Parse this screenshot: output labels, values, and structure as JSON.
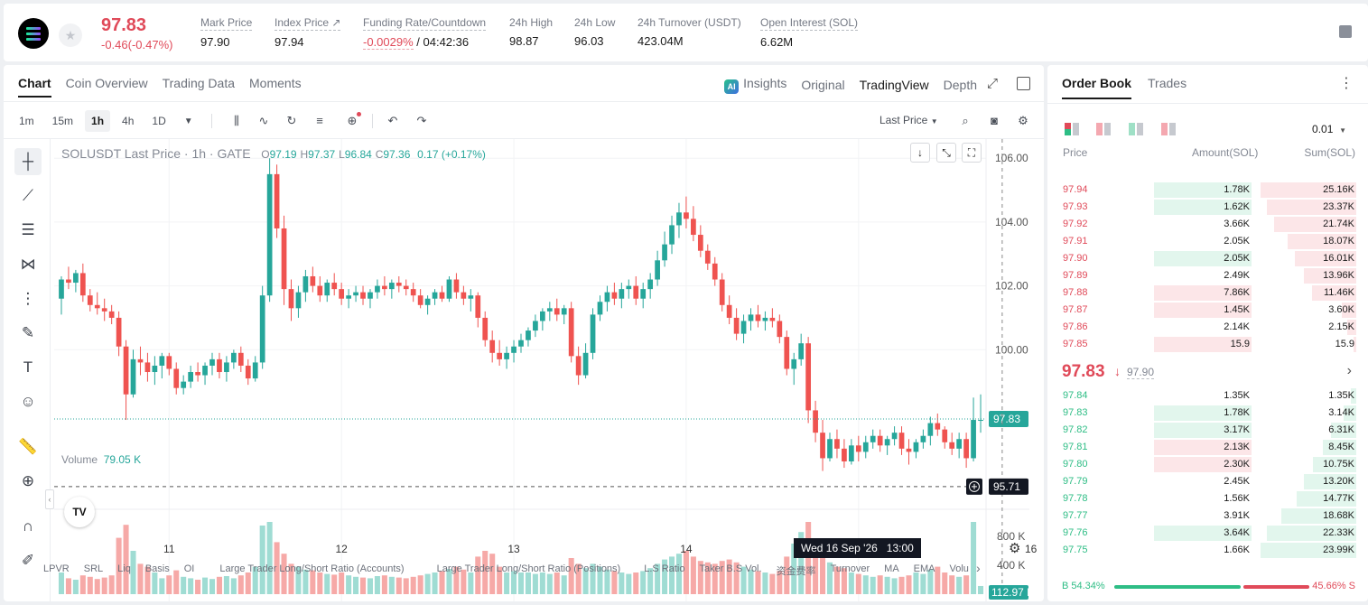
{
  "header": {
    "last_price": "97.83",
    "change": "-0.46(-0.47%)",
    "stats": [
      {
        "label": "Mark Price",
        "value": "97.90"
      },
      {
        "label": "Index Price ↗",
        "value": "97.94"
      },
      {
        "label": "Funding Rate/Countdown",
        "value": "-0.0029%",
        "value2": "/ 04:42:36"
      },
      {
        "label": "24h High",
        "value": "98.87"
      },
      {
        "label": "24h Low",
        "value": "96.03"
      },
      {
        "label": "24h Turnover (USDT)",
        "value": "423.04M"
      },
      {
        "label": "Open Interest (SOL)",
        "value": "6.62M"
      }
    ]
  },
  "chart_panel": {
    "tabs": [
      "Chart",
      "Coin Overview",
      "Trading Data",
      "Moments"
    ],
    "views": {
      "insights": "Insights",
      "original": "Original",
      "tradingview": "TradingView",
      "depth": "Depth"
    },
    "ai_badge": "AI",
    "timeframes": [
      "1m",
      "15m",
      "1h",
      "4h",
      "1D"
    ],
    "price_type": "Last Price",
    "legend": {
      "symbol": "SOLUSDT Last Price · 1h · GATE",
      "o": "97.19",
      "h": "97.37",
      "l": "96.84",
      "c": "97.36",
      "chg": "0.17 (+0.17%)"
    },
    "volume_label": "Volume",
    "volume_value": "79.05 K",
    "last_price_tag": "97.83",
    "cursor_price_tag": "95.71",
    "cursor_time": "Wed 16 Sep '26   13:00",
    "bottom_indicators": [
      "LPVR",
      "SRL",
      "Liq",
      "Basis",
      "OI",
      "Large Trader Long/Short Ratio (Accounts)",
      "Large Trader Long/Short Ratio (Positions)",
      "L.S Ratio",
      "Taker B.S Vol.",
      "资金费率",
      "Turnover",
      "MA",
      "EMA",
      "Volu"
    ]
  },
  "chart_data": {
    "type": "candlestick",
    "x_ticks": [
      "11",
      "12",
      "13",
      "14",
      "15",
      "16"
    ],
    "y_ticks": [
      106.0,
      104.0,
      102.0,
      100.0
    ],
    "ylim": [
      95.0,
      106.6
    ],
    "volume_ticks": [
      "800 K",
      "400 K"
    ],
    "volume_max": 1000,
    "latest_volume_tag": "112.97 K",
    "candles": [
      [
        101.6,
        102.3,
        101.1,
        102.2,
        300
      ],
      [
        102.2,
        102.6,
        101.9,
        102.1,
        220
      ],
      [
        102.1,
        102.5,
        101.8,
        102.4,
        200
      ],
      [
        102.4,
        102.7,
        101.5,
        101.7,
        260
      ],
      [
        101.7,
        101.9,
        101.2,
        101.4,
        240
      ],
      [
        101.4,
        101.8,
        101.1,
        101.3,
        210
      ],
      [
        101.3,
        101.6,
        100.9,
        101.2,
        230
      ],
      [
        101.2,
        101.4,
        100.8,
        101.0,
        260
      ],
      [
        101.0,
        101.2,
        99.8,
        100.1,
        780
      ],
      [
        100.1,
        100.3,
        97.8,
        98.6,
        960
      ],
      [
        98.6,
        100.0,
        98.5,
        99.7,
        600
      ],
      [
        99.7,
        100.1,
        99.2,
        99.6,
        420
      ],
      [
        99.6,
        99.9,
        99.0,
        99.3,
        380
      ],
      [
        99.3,
        99.8,
        98.9,
        99.5,
        300
      ],
      [
        99.5,
        99.9,
        99.1,
        99.8,
        220
      ],
      [
        99.8,
        99.9,
        99.2,
        99.4,
        260
      ],
      [
        99.4,
        99.6,
        98.6,
        98.8,
        330
      ],
      [
        98.8,
        99.2,
        98.6,
        99.0,
        240
      ],
      [
        99.0,
        99.5,
        98.8,
        99.3,
        220
      ],
      [
        99.3,
        99.6,
        99.0,
        99.2,
        200
      ],
      [
        99.2,
        99.6,
        98.9,
        99.5,
        230
      ],
      [
        99.5,
        99.9,
        99.2,
        99.7,
        210
      ],
      [
        99.7,
        99.9,
        99.1,
        99.3,
        240
      ],
      [
        99.3,
        99.8,
        99.0,
        99.6,
        250
      ],
      [
        99.6,
        100.0,
        99.4,
        99.9,
        220
      ],
      [
        99.9,
        100.1,
        99.3,
        99.5,
        260
      ],
      [
        99.5,
        99.7,
        98.9,
        99.1,
        300
      ],
      [
        99.1,
        99.8,
        99.0,
        99.6,
        380
      ],
      [
        99.6,
        102.0,
        99.4,
        101.7,
        950
      ],
      [
        101.7,
        106.0,
        101.5,
        105.5,
        1000
      ],
      [
        105.5,
        105.8,
        103.5,
        103.8,
        720
      ],
      [
        103.8,
        104.2,
        101.4,
        101.9,
        560
      ],
      [
        101.9,
        102.2,
        100.9,
        101.3,
        420
      ],
      [
        101.3,
        102.0,
        101.0,
        101.8,
        380
      ],
      [
        101.8,
        102.5,
        101.5,
        102.3,
        340
      ],
      [
        102.3,
        102.6,
        101.8,
        102.0,
        330
      ],
      [
        102.0,
        102.3,
        101.5,
        101.7,
        300
      ],
      [
        101.7,
        102.2,
        101.5,
        102.1,
        280
      ],
      [
        102.1,
        102.4,
        101.7,
        101.9,
        270
      ],
      [
        101.9,
        102.1,
        101.4,
        101.6,
        300
      ],
      [
        101.6,
        101.9,
        101.3,
        101.7,
        260
      ],
      [
        101.7,
        102.0,
        101.5,
        101.8,
        240
      ],
      [
        101.8,
        102.0,
        101.4,
        101.6,
        230
      ],
      [
        101.6,
        101.9,
        101.3,
        101.8,
        220
      ],
      [
        101.8,
        102.2,
        101.6,
        102.0,
        250
      ],
      [
        102.0,
        102.3,
        101.7,
        101.9,
        260
      ],
      [
        101.9,
        102.2,
        101.6,
        102.1,
        240
      ],
      [
        102.1,
        102.3,
        101.8,
        102.0,
        230
      ],
      [
        102.0,
        102.2,
        101.7,
        101.9,
        220
      ],
      [
        101.9,
        102.1,
        101.5,
        101.7,
        240
      ],
      [
        101.7,
        101.9,
        101.3,
        101.4,
        260
      ],
      [
        101.4,
        101.7,
        101.1,
        101.6,
        280
      ],
      [
        101.6,
        101.9,
        101.4,
        101.8,
        300
      ],
      [
        101.8,
        102.0,
        101.5,
        101.6,
        320
      ],
      [
        101.6,
        102.3,
        101.5,
        102.2,
        350
      ],
      [
        102.2,
        102.4,
        101.6,
        101.8,
        380
      ],
      [
        101.8,
        102.0,
        101.4,
        101.6,
        340
      ],
      [
        101.6,
        101.9,
        101.2,
        101.7,
        300
      ],
      [
        101.7,
        101.8,
        100.7,
        101.0,
        520
      ],
      [
        101.0,
        101.2,
        100.1,
        100.3,
        600
      ],
      [
        100.3,
        100.6,
        99.6,
        99.9,
        560
      ],
      [
        99.9,
        100.3,
        99.5,
        99.7,
        380
      ],
      [
        99.7,
        100.1,
        99.4,
        99.9,
        300
      ],
      [
        99.9,
        100.3,
        99.6,
        100.1,
        320
      ],
      [
        100.1,
        100.5,
        99.9,
        100.3,
        300
      ],
      [
        100.3,
        100.7,
        100.1,
        100.6,
        300
      ],
      [
        100.6,
        101.1,
        100.4,
        100.9,
        280
      ],
      [
        100.9,
        101.3,
        100.6,
        101.2,
        300
      ],
      [
        101.2,
        101.5,
        100.9,
        101.3,
        280
      ],
      [
        101.3,
        101.6,
        100.9,
        101.1,
        300
      ],
      [
        101.1,
        101.4,
        100.8,
        101.3,
        260
      ],
      [
        101.3,
        101.5,
        99.6,
        99.8,
        500
      ],
      [
        99.8,
        100.1,
        98.9,
        99.2,
        420
      ],
      [
        99.2,
        100.2,
        99.1,
        99.9,
        360
      ],
      [
        99.9,
        101.3,
        99.7,
        101.1,
        420
      ],
      [
        101.1,
        101.7,
        100.9,
        101.5,
        380
      ],
      [
        101.5,
        102.0,
        101.2,
        101.8,
        340
      ],
      [
        101.8,
        102.1,
        101.4,
        101.6,
        320
      ],
      [
        101.6,
        102.1,
        101.3,
        101.9,
        300
      ],
      [
        101.9,
        102.2,
        101.6,
        102.0,
        280
      ],
      [
        102.0,
        102.3,
        101.4,
        101.6,
        300
      ],
      [
        101.6,
        102.1,
        101.3,
        101.9,
        320
      ],
      [
        101.9,
        102.4,
        101.6,
        102.2,
        360
      ],
      [
        102.2,
        103.1,
        102.0,
        102.8,
        420
      ],
      [
        102.8,
        103.7,
        102.6,
        103.3,
        480
      ],
      [
        103.3,
        104.2,
        103.0,
        103.9,
        520
      ],
      [
        103.9,
        104.6,
        103.5,
        104.3,
        560
      ],
      [
        104.3,
        104.8,
        103.8,
        104.1,
        600
      ],
      [
        104.1,
        104.5,
        103.4,
        103.6,
        520
      ],
      [
        103.6,
        103.9,
        102.9,
        103.1,
        460
      ],
      [
        103.1,
        103.3,
        102.5,
        102.7,
        440
      ],
      [
        102.7,
        102.9,
        102.0,
        102.2,
        420
      ],
      [
        102.2,
        102.4,
        101.2,
        101.4,
        460
      ],
      [
        101.4,
        101.7,
        100.8,
        101.0,
        480
      ],
      [
        101.0,
        101.3,
        100.3,
        100.5,
        440
      ],
      [
        100.5,
        101.1,
        100.2,
        100.9,
        380
      ],
      [
        100.9,
        101.3,
        100.6,
        101.1,
        340
      ],
      [
        101.1,
        101.4,
        100.7,
        100.9,
        320
      ],
      [
        100.9,
        101.2,
        100.6,
        101.0,
        300
      ],
      [
        101.0,
        101.3,
        100.7,
        100.9,
        280
      ],
      [
        100.9,
        101.1,
        100.2,
        100.4,
        320
      ],
      [
        100.4,
        100.6,
        99.2,
        99.4,
        520
      ],
      [
        99.4,
        99.9,
        98.9,
        99.7,
        700
      ],
      [
        99.7,
        100.5,
        99.5,
        100.2,
        860
      ],
      [
        100.2,
        100.4,
        97.7,
        98.1,
        1000
      ],
      [
        98.1,
        98.4,
        97.1,
        97.4,
        700
      ],
      [
        97.4,
        97.8,
        96.2,
        96.6,
        520
      ],
      [
        96.6,
        97.4,
        96.5,
        97.2,
        440
      ],
      [
        97.2,
        97.5,
        96.6,
        96.9,
        380
      ],
      [
        96.9,
        97.2,
        96.3,
        96.5,
        360
      ],
      [
        96.5,
        97.2,
        96.4,
        97.0,
        300
      ],
      [
        97.0,
        97.3,
        96.5,
        96.8,
        280
      ],
      [
        96.8,
        97.3,
        96.6,
        97.1,
        260
      ],
      [
        97.1,
        97.5,
        96.9,
        97.3,
        240
      ],
      [
        97.3,
        97.5,
        96.8,
        97.0,
        260
      ],
      [
        97.0,
        97.3,
        96.7,
        97.2,
        240
      ],
      [
        97.2,
        97.6,
        97.0,
        97.4,
        220
      ],
      [
        97.4,
        97.6,
        96.7,
        96.9,
        240
      ],
      [
        96.9,
        97.2,
        96.4,
        96.8,
        260
      ],
      [
        96.8,
        97.2,
        96.6,
        97.1,
        300
      ],
      [
        97.1,
        97.5,
        96.9,
        97.3,
        280
      ],
      [
        97.3,
        97.9,
        97.0,
        97.7,
        340
      ],
      [
        97.7,
        98.0,
        97.3,
        97.5,
        380
      ],
      [
        97.5,
        97.6,
        96.9,
        97.1,
        300
      ],
      [
        97.1,
        97.4,
        96.7,
        96.9,
        260
      ],
      [
        96.9,
        97.4,
        96.6,
        97.2,
        240
      ],
      [
        97.2,
        97.4,
        96.3,
        96.6,
        260
      ],
      [
        96.6,
        98.5,
        96.5,
        97.8,
        1000
      ],
      [
        97.8,
        98.6,
        97.4,
        97.8,
        113
      ]
    ]
  },
  "order_book": {
    "tabs": [
      "Order Book",
      "Trades"
    ],
    "tick": "0.01",
    "headers": {
      "price": "Price",
      "amount": "Amount(SOL)",
      "sum": "Sum(SOL)"
    },
    "asks": [
      {
        "price": "97.94",
        "amount": "1.78K",
        "sum": "25.16K",
        "amount_frac": 0.64,
        "sum_frac": 1.0,
        "amount_side": "buy"
      },
      {
        "price": "97.93",
        "amount": "1.62K",
        "sum": "23.37K",
        "amount_frac": 0.64,
        "sum_frac": 0.93,
        "amount_side": "buy"
      },
      {
        "price": "97.92",
        "amount": "3.66K",
        "sum": "21.74K",
        "amount_frac": 0.0,
        "sum_frac": 0.86,
        "amount_side": "buy"
      },
      {
        "price": "97.91",
        "amount": "2.05K",
        "sum": "18.07K",
        "amount_frac": 0.0,
        "sum_frac": 0.72,
        "amount_side": "buy"
      },
      {
        "price": "97.90",
        "amount": "2.05K",
        "sum": "16.01K",
        "amount_frac": 0.64,
        "sum_frac": 0.64,
        "amount_side": "buy"
      },
      {
        "price": "97.89",
        "amount": "2.49K",
        "sum": "13.96K",
        "amount_frac": 0.0,
        "sum_frac": 0.55,
        "amount_side": "buy"
      },
      {
        "price": "97.88",
        "amount": "7.86K",
        "sum": "11.46K",
        "amount_frac": 0.64,
        "sum_frac": 0.46,
        "amount_side": "sell"
      },
      {
        "price": "97.87",
        "amount": "1.45K",
        "sum": "3.60K",
        "amount_frac": 0.64,
        "sum_frac": 0.15,
        "amount_side": "sell"
      },
      {
        "price": "97.86",
        "amount": "2.14K",
        "sum": "2.15K",
        "amount_frac": 0.0,
        "sum_frac": 0.09,
        "amount_side": "sell"
      },
      {
        "price": "97.85",
        "amount": "15.9",
        "sum": "15.9",
        "amount_frac": 0.64,
        "sum_frac": 0.03,
        "amount_side": "sell"
      }
    ],
    "mid_price": "97.83",
    "mid_arrow": "↓",
    "mid_mark": "97.90",
    "bids": [
      {
        "price": "97.84",
        "amount": "1.35K",
        "sum": "1.35K",
        "amount_frac": 0.0,
        "sum_frac": 0.06,
        "amount_side": "buy"
      },
      {
        "price": "97.83",
        "amount": "1.78K",
        "sum": "3.14K",
        "amount_frac": 0.64,
        "sum_frac": 0.13,
        "amount_side": "buy"
      },
      {
        "price": "97.82",
        "amount": "3.17K",
        "sum": "6.31K",
        "amount_frac": 0.64,
        "sum_frac": 0.26,
        "amount_side": "buy"
      },
      {
        "price": "97.81",
        "amount": "2.13K",
        "sum": "8.45K",
        "amount_frac": 0.64,
        "sum_frac": 0.35,
        "amount_side": "sell"
      },
      {
        "price": "97.80",
        "amount": "2.30K",
        "sum": "10.75K",
        "amount_frac": 0.64,
        "sum_frac": 0.45,
        "amount_side": "sell"
      },
      {
        "price": "97.79",
        "amount": "2.45K",
        "sum": "13.20K",
        "amount_frac": 0.0,
        "sum_frac": 0.55,
        "amount_side": "buy"
      },
      {
        "price": "97.78",
        "amount": "1.56K",
        "sum": "14.77K",
        "amount_frac": 0.0,
        "sum_frac": 0.62,
        "amount_side": "buy"
      },
      {
        "price": "97.77",
        "amount": "3.91K",
        "sum": "18.68K",
        "amount_frac": 0.0,
        "sum_frac": 0.78,
        "amount_side": "buy"
      },
      {
        "price": "97.76",
        "amount": "3.64K",
        "sum": "22.33K",
        "amount_frac": 0.64,
        "sum_frac": 0.93,
        "amount_side": "buy"
      },
      {
        "price": "97.75",
        "amount": "1.66K",
        "sum": "23.99K",
        "amount_frac": 0.0,
        "sum_frac": 1.0,
        "amount_side": "buy"
      }
    ],
    "buy_ratio": "B 54.34%",
    "sell_ratio": "45.66% S"
  },
  "colors": {
    "up": "#26a69a",
    "down": "#ef5350",
    "red_text": "#e04a59",
    "green_text": "#2ebd85"
  }
}
